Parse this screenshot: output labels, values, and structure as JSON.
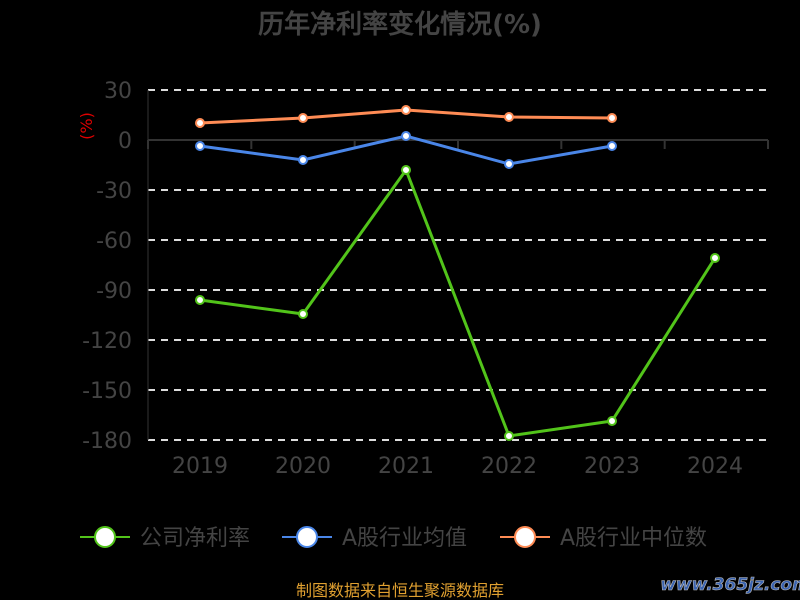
{
  "chart_data": {
    "type": "line",
    "title": "历年净利率变化情况(%)",
    "ylabel": "(%)",
    "xlabel": "",
    "x": [
      "2019",
      "2020",
      "2021",
      "2022",
      "2023",
      "2024"
    ],
    "ylim": [
      -180,
      30
    ],
    "yticks": [
      30,
      0,
      -30,
      -60,
      -90,
      -120,
      -150,
      -180
    ],
    "grid": true,
    "legend_position": "bottom",
    "series": [
      {
        "name": "公司净利率",
        "color": "#52c41a",
        "values": [
          -96,
          -104.4,
          -18,
          -177.6,
          -168.6,
          -70.8
        ]
      },
      {
        "name": "A股行业均值",
        "color": "#4a86e8",
        "values": [
          -3.6,
          -12,
          2.4,
          -14.4,
          -3.6,
          null
        ]
      },
      {
        "name": "A股行业中位数",
        "color": "#ff8c55",
        "values": [
          10.2,
          13.2,
          18,
          13.8,
          13.2,
          null
        ]
      }
    ]
  },
  "source": "制图数据来自恒生聚源数据库",
  "watermark": "www.365jz.com"
}
